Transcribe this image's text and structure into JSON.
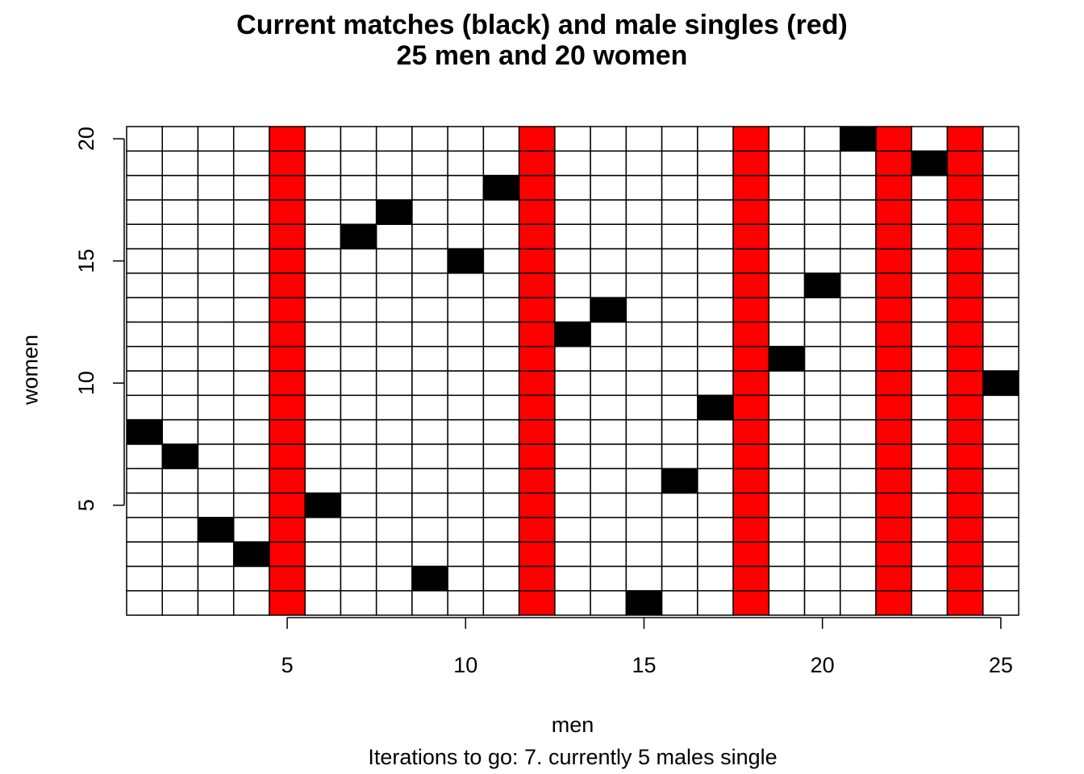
{
  "chart_data": {
    "type": "heatmap",
    "title_line1": "Current matches (black) and male singles (red)",
    "title_line2": "25 men and 20 women",
    "xlabel": "men",
    "ylabel": "women",
    "subtitle": "Iterations to go: 7. currently 5 males single",
    "n_men": 25,
    "n_women": 20,
    "x_ticks": [
      5,
      10,
      15,
      20,
      25
    ],
    "y_ticks": [
      5,
      10,
      15,
      20
    ],
    "single_men": [
      5,
      12,
      18,
      22,
      24
    ],
    "matches": [
      {
        "man": 1,
        "woman": 8
      },
      {
        "man": 2,
        "woman": 7
      },
      {
        "man": 3,
        "woman": 4
      },
      {
        "man": 4,
        "woman": 3
      },
      {
        "man": 6,
        "woman": 5
      },
      {
        "man": 7,
        "woman": 16
      },
      {
        "man": 8,
        "woman": 17
      },
      {
        "man": 9,
        "woman": 2
      },
      {
        "man": 10,
        "woman": 15
      },
      {
        "man": 11,
        "woman": 18
      },
      {
        "man": 13,
        "woman": 12
      },
      {
        "man": 14,
        "woman": 13
      },
      {
        "man": 15,
        "woman": 1
      },
      {
        "man": 16,
        "woman": 6
      },
      {
        "man": 17,
        "woman": 9
      },
      {
        "man": 19,
        "woman": 11
      },
      {
        "man": 20,
        "woman": 14
      },
      {
        "man": 21,
        "woman": 20
      },
      {
        "man": 23,
        "woman": 19
      },
      {
        "man": 25,
        "woman": 10
      }
    ],
    "colors": {
      "match": "#000000",
      "single": "#ff0000",
      "empty": "#ffffff",
      "grid": "#000000"
    }
  }
}
